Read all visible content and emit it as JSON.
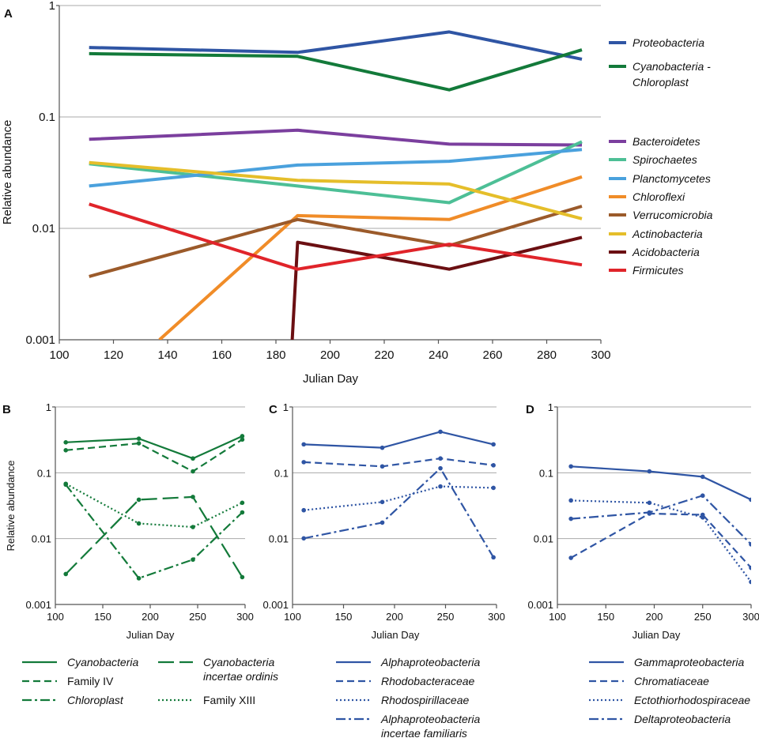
{
  "chart_data": [
    {
      "panel": "A",
      "type": "line",
      "yscale": "log",
      "xlabel": "Julian Day",
      "ylabel": "Relative abundance",
      "xlim": [
        100,
        300
      ],
      "ylim": [
        0.001,
        1
      ],
      "xticks": [
        100,
        120,
        140,
        160,
        180,
        200,
        220,
        240,
        260,
        280,
        300
      ],
      "yticks": [
        0.001,
        0.01,
        0.1,
        1
      ],
      "ytick_labels": [
        "0.001",
        "0.01",
        "0.1",
        "1"
      ],
      "grid": "horizontal",
      "series": [
        {
          "name": "Proteobacteria",
          "italic": true,
          "color": "#2f55a4",
          "x": [
            111,
            188,
            244,
            293
          ],
          "y": [
            0.42,
            0.38,
            0.58,
            0.33
          ]
        },
        {
          "name": "Cyanobacteria - Chloroplast",
          "italic": true,
          "legend_lines": [
            "Cyanobacteria -",
            "Chloroplast"
          ],
          "color": "#137a3a",
          "x": [
            111,
            188,
            244,
            293
          ],
          "y": [
            0.37,
            0.35,
            0.175,
            0.4
          ]
        },
        {
          "name": "Bacteroidetes",
          "italic": true,
          "color": "#7b3f9e",
          "x": [
            111,
            188,
            244,
            293
          ],
          "y": [
            0.063,
            0.076,
            0.057,
            0.056
          ]
        },
        {
          "name": "Spirochaetes",
          "italic": true,
          "color": "#4dbf96",
          "x": [
            111,
            188,
            244,
            293
          ],
          "y": [
            0.038,
            0.024,
            0.017,
            0.06
          ]
        },
        {
          "name": "Planctomycetes",
          "italic": true,
          "color": "#4aa1dd",
          "x": [
            111,
            188,
            244,
            293
          ],
          "y": [
            0.024,
            0.037,
            0.04,
            0.051
          ]
        },
        {
          "name": "Chloroflexi",
          "italic": true,
          "color": "#f08c28",
          "x": [
            137,
            188,
            244,
            293
          ],
          "y": [
            0.001,
            0.013,
            0.012,
            0.029
          ]
        },
        {
          "name": "Verrucomicrobia",
          "italic": true,
          "color": "#9b5a2a",
          "x": [
            111,
            188,
            244,
            293
          ],
          "y": [
            0.0037,
            0.012,
            0.007,
            0.0158
          ]
        },
        {
          "name": "Actinobacteria",
          "italic": true,
          "color": "#e5be2a",
          "x": [
            111,
            188,
            244,
            293
          ],
          "y": [
            0.039,
            0.027,
            0.025,
            0.0122
          ]
        },
        {
          "name": "Acidobacteria",
          "italic": true,
          "color": "#6b0f12",
          "x": [
            186,
            188,
            244,
            293
          ],
          "y": [
            0.001,
            0.0075,
            0.0043,
            0.0083
          ]
        },
        {
          "name": "Firmicutes",
          "italic": true,
          "color": "#e0242a",
          "x": [
            111,
            188,
            244,
            293
          ],
          "y": [
            0.0165,
            0.0043,
            0.0072,
            0.0047
          ]
        }
      ]
    },
    {
      "panel": "B",
      "type": "line",
      "yscale": "log",
      "xlabel": "Julian Day",
      "ylabel": "Relative abundance",
      "xlim": [
        100,
        300
      ],
      "ylim": [
        0.001,
        1
      ],
      "xticks": [
        100,
        150,
        200,
        250,
        300
      ],
      "yticks": [
        0.001,
        0.01,
        0.1,
        1
      ],
      "ytick_labels": [
        "0.001",
        "0.01",
        "0.1",
        "1"
      ],
      "color": "#137a3a",
      "series": [
        {
          "name": "Cyanobacteria",
          "italic": true,
          "dash": "solid",
          "x": [
            111,
            188,
            245,
            297
          ],
          "y": [
            0.29,
            0.33,
            0.165,
            0.36
          ]
        },
        {
          "name": "Family IV",
          "italic": false,
          "dash": "dashed",
          "x": [
            111,
            188,
            245,
            297
          ],
          "y": [
            0.22,
            0.28,
            0.105,
            0.32
          ]
        },
        {
          "name": "Chloroplast",
          "italic": true,
          "dash": "dashdot",
          "x": [
            111,
            188,
            245,
            297
          ],
          "y": [
            0.066,
            0.0025,
            0.0048,
            0.025
          ]
        },
        {
          "name": "Cyanobacteria incertae ordinis",
          "italic": true,
          "legend_lines": [
            "Cyanobacteria",
            "incertae ordinis"
          ],
          "dash": "longdash",
          "x": [
            111,
            188,
            245,
            297
          ],
          "y": [
            0.0029,
            0.039,
            0.043,
            0.0026
          ]
        },
        {
          "name": "Family XIII",
          "italic": false,
          "dash": "dotted",
          "x": [
            111,
            188,
            245,
            297
          ],
          "y": [
            0.068,
            0.017,
            0.015,
            0.035
          ]
        }
      ]
    },
    {
      "panel": "C",
      "type": "line",
      "yscale": "log",
      "xlabel": "Julian Day",
      "xlim": [
        100,
        300
      ],
      "ylim": [
        0.001,
        1
      ],
      "xticks": [
        100,
        150,
        200,
        250,
        300
      ],
      "yticks": [
        0.001,
        0.01,
        0.1,
        1
      ],
      "ytick_labels": [
        "0.001",
        "0.01",
        "0.1",
        "1"
      ],
      "color": "#2f55a4",
      "series": [
        {
          "name": "Alphaproteobacteria",
          "italic": true,
          "dash": "solid",
          "x": [
            111,
            188,
            245,
            297
          ],
          "y": [
            0.27,
            0.24,
            0.42,
            0.27
          ]
        },
        {
          "name": "Rhodobacteraceae",
          "italic": true,
          "dash": "dashed",
          "x": [
            111,
            188,
            245,
            297
          ],
          "y": [
            0.145,
            0.125,
            0.165,
            0.13
          ]
        },
        {
          "name": "Rhodospirillaceae",
          "italic": true,
          "dash": "dotted",
          "x": [
            111,
            188,
            245,
            297
          ],
          "y": [
            0.027,
            0.036,
            0.062,
            0.059
          ]
        },
        {
          "name": "Alphaproteobacteria incertae familiaris",
          "italic": true,
          "legend_lines": [
            "Alphaproteobacteria",
            "incertae familiaris"
          ],
          "dash": "dashdot",
          "x": [
            111,
            188,
            245,
            297
          ],
          "y": [
            0.0101,
            0.0175,
            0.117,
            0.0052
          ]
        }
      ]
    },
    {
      "panel": "D",
      "type": "line",
      "yscale": "log",
      "xlabel": "Julian Day",
      "xlim": [
        100,
        300
      ],
      "ylim": [
        0.001,
        1
      ],
      "xticks": [
        100,
        150,
        200,
        250,
        300
      ],
      "yticks": [
        0.001,
        0.01,
        0.1,
        1
      ],
      "ytick_labels": [
        "0.001",
        "0.01",
        "0.1",
        "1"
      ],
      "color": "#2f55a4",
      "series": [
        {
          "name": "Gammaproteobacteria",
          "italic": true,
          "dash": "solid",
          "x": [
            114,
            195,
            250,
            300
          ],
          "y": [
            0.125,
            0.105,
            0.087,
            0.039
          ]
        },
        {
          "name": "Chromatiaceae",
          "italic": true,
          "dash": "dashed",
          "x": [
            114,
            195,
            250,
            300
          ],
          "y": [
            0.0051,
            0.024,
            0.023,
            0.0036
          ]
        },
        {
          "name": "Ectothiorhodospiraceae",
          "italic": true,
          "dash": "dotted",
          "x": [
            114,
            195,
            250,
            300
          ],
          "y": [
            0.038,
            0.035,
            0.021,
            0.0022
          ]
        },
        {
          "name": "Deltaproteobacteria",
          "italic": true,
          "dash": "dashdot",
          "x": [
            114,
            195,
            250,
            300
          ],
          "y": [
            0.02,
            0.025,
            0.045,
            0.0082
          ]
        }
      ]
    }
  ]
}
